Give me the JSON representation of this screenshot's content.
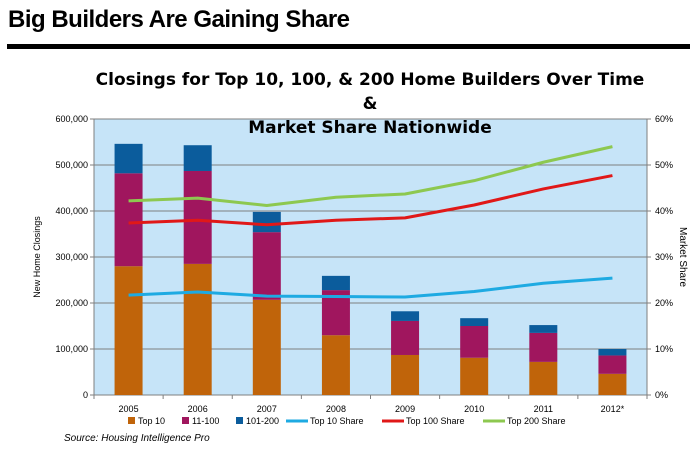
{
  "header": {
    "title": "Big Builders Are Gaining Share"
  },
  "chart_data": {
    "type": "bar",
    "title_line1": "Closings for Top 10, 100, & 200 Home Builders Over Time &",
    "title_line2": "Market Share Nationwide",
    "ylabel": "New Home Closings",
    "y2label": "Market Share",
    "ylim": [
      0,
      600000
    ],
    "y2lim": [
      0,
      60
    ],
    "yticks": [
      "0",
      "100,000",
      "200,000",
      "300,000",
      "400,000",
      "500,000",
      "600,000"
    ],
    "y2ticks": [
      "0%",
      "10%",
      "20%",
      "30%",
      "40%",
      "50%",
      "60%"
    ],
    "grid": true,
    "legend_placement": "bottom",
    "categories": [
      "2005",
      "2006",
      "2007",
      "2008",
      "2009",
      "2010",
      "2011",
      "2012*"
    ],
    "bar_series": [
      {
        "name": "Top 10",
        "color": "#C0640A",
        "values": [
          280000,
          285000,
          207000,
          130000,
          87000,
          81000,
          72000,
          46000
        ]
      },
      {
        "name": "11-100",
        "color": "#A0165E",
        "values": [
          202000,
          202000,
          147000,
          98000,
          74000,
          69000,
          63000,
          40000
        ]
      },
      {
        "name": "101-200",
        "color": "#0B5C9C",
        "values": [
          64000,
          56000,
          44000,
          31000,
          21000,
          17000,
          17000,
          14000
        ]
      }
    ],
    "line_series": [
      {
        "name": "Top 10 Share",
        "color": "#1EAAE2",
        "values": [
          21.7,
          22.4,
          21.5,
          21.4,
          21.3,
          22.5,
          24.3,
          25.4
        ]
      },
      {
        "name": "Top 100 Share",
        "color": "#E01818",
        "values": [
          37.4,
          38.0,
          37.0,
          38.0,
          38.5,
          41.3,
          44.8,
          47.7
        ]
      },
      {
        "name": "Top 200 Share",
        "color": "#8DC850",
        "values": [
          42.2,
          42.8,
          41.2,
          43.0,
          43.7,
          46.6,
          50.6,
          54.0
        ]
      }
    ],
    "plot_background": "#C6E4F8"
  },
  "footer": {
    "source": "Source: Housing Intelligence Pro"
  }
}
